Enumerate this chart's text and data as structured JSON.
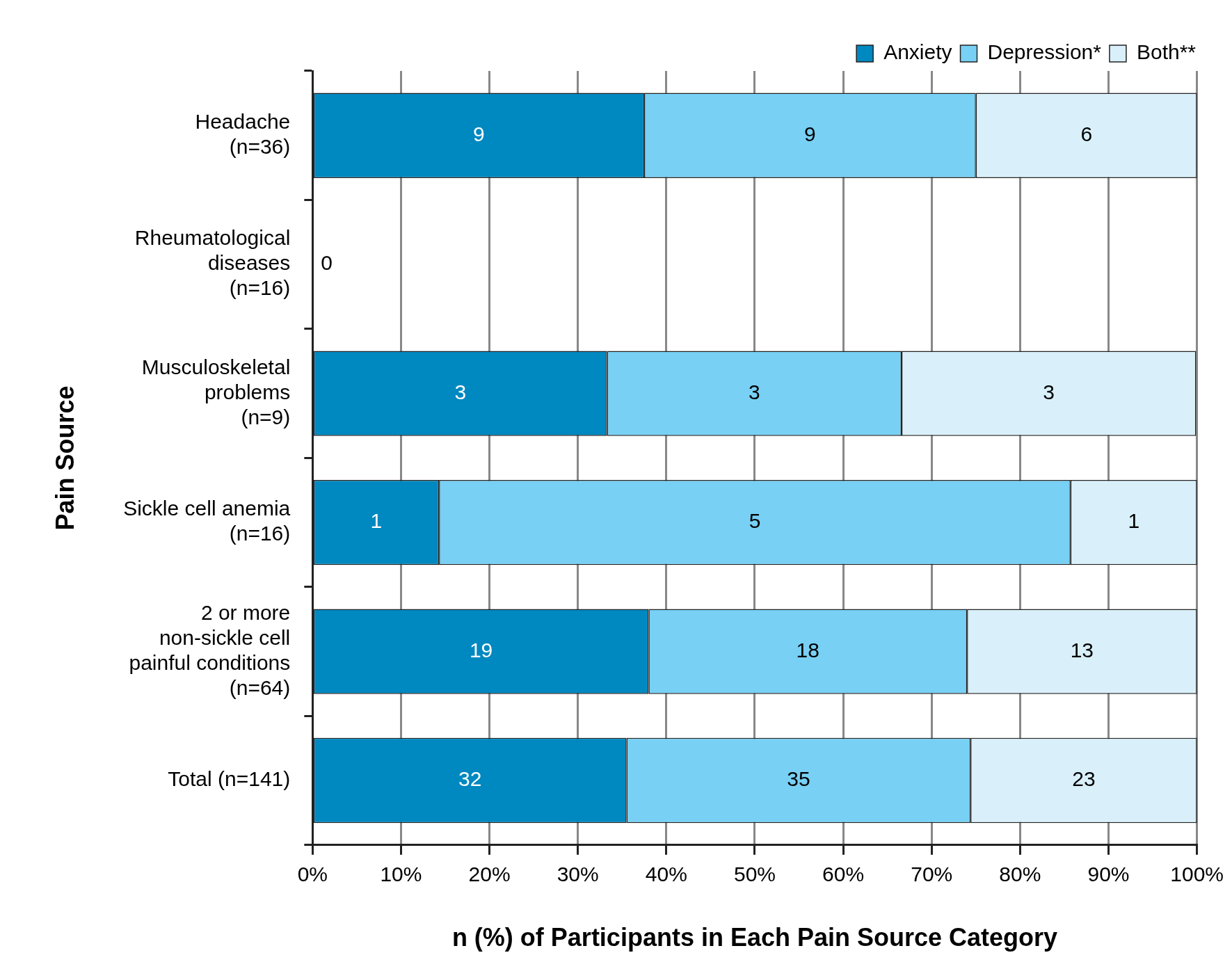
{
  "chart_data": {
    "type": "bar",
    "orientation": "horizontal",
    "stacked": true,
    "xlabel": "n (%) of Participants in Each Pain Source Category",
    "ylabel": "Pain Source",
    "categories": [
      "Headache\n(n=36)",
      "Rheumatological\ndiseases\n(n=16)",
      "Musculoskeletal\nproblems\n(n=9)",
      "Sickle cell anemia\n(n=16)",
      "2 or more\nnon-sickle cell\npainful conditions\n(n=64)",
      "Total (n=141)"
    ],
    "series": [
      {
        "name": "Anxiety",
        "color": "#0088c0",
        "values": [
          37.5,
          0,
          33.3,
          14.3,
          38,
          35.5
        ]
      },
      {
        "name": "Depression*",
        "color": "#78d0f4",
        "values": [
          37.5,
          0,
          33.3,
          71.4,
          36,
          38.9
        ]
      },
      {
        "name": "Both**",
        "color": "#d9f0fa",
        "values": [
          25,
          0,
          33.3,
          14.3,
          26,
          25.6
        ]
      }
    ],
    "annotations": [
      "9",
      "9",
      "6",
      "0",
      "3",
      "3",
      "3",
      "1",
      "5",
      "1",
      "19",
      "18",
      "13",
      "32",
      "35",
      "23"
    ],
    "xlim": [
      0,
      100
    ],
    "xticks": [
      {
        "value": 0,
        "label": "0%"
      },
      {
        "value": 10,
        "label": "10%"
      },
      {
        "value": 20,
        "label": "20%"
      },
      {
        "value": 30,
        "label": "30%"
      },
      {
        "value": 40,
        "label": "40%"
      },
      {
        "value": 50,
        "label": "50%"
      },
      {
        "value": 60,
        "label": "60%"
      },
      {
        "value": 70,
        "label": "70%"
      },
      {
        "value": 80,
        "label": "80%"
      },
      {
        "value": 90,
        "label": "90%"
      },
      {
        "value": 100,
        "label": "100%"
      }
    ],
    "grid": "x",
    "legend": "top right"
  }
}
